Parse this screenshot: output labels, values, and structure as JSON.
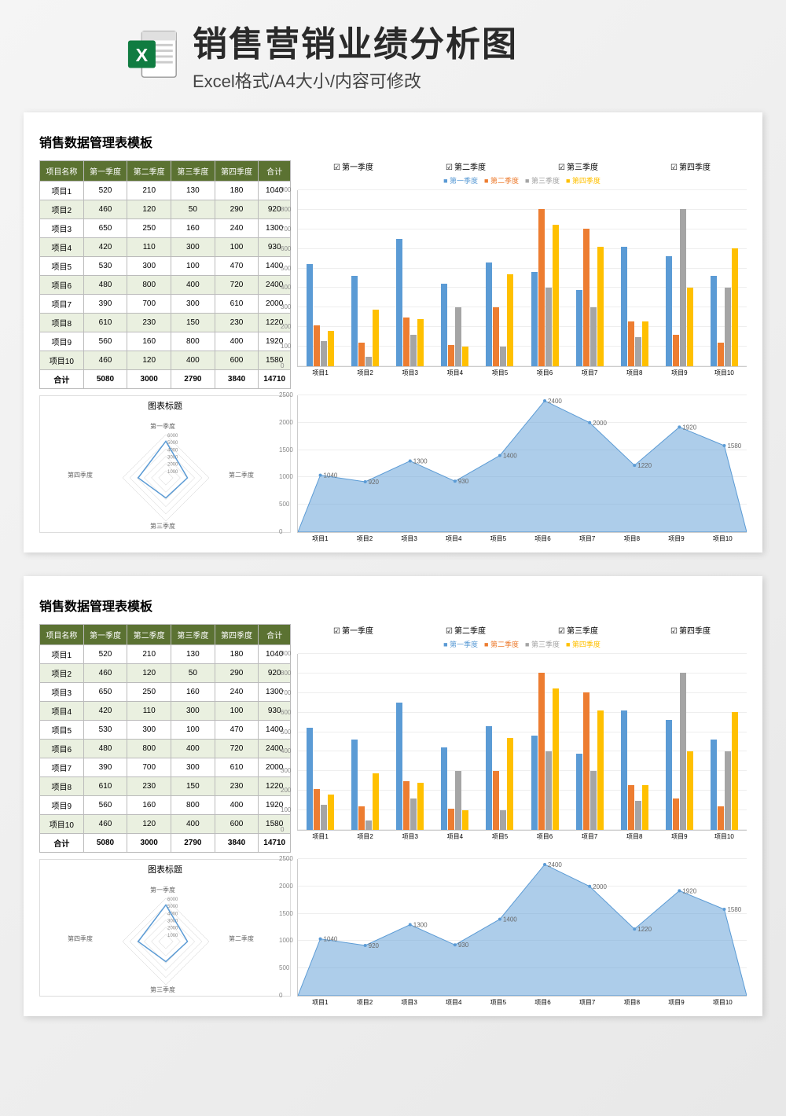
{
  "header": {
    "main_title": "销售营销业绩分析图",
    "sub_title": "Excel格式/A4大小/内容可修改"
  },
  "page": {
    "title": "销售数据管理表模板",
    "table": {
      "columns": [
        "项目名称",
        "第一季度",
        "第二季度",
        "第三季度",
        "第四季度",
        "合计"
      ],
      "rows": [
        [
          "项目1",
          520,
          210,
          130,
          180,
          1040
        ],
        [
          "项目2",
          460,
          120,
          50,
          290,
          920
        ],
        [
          "项目3",
          650,
          250,
          160,
          240,
          1300
        ],
        [
          "项目4",
          420,
          110,
          300,
          100,
          930
        ],
        [
          "项目5",
          530,
          300,
          100,
          470,
          1400
        ],
        [
          "项目6",
          480,
          800,
          400,
          720,
          2400
        ],
        [
          "项目7",
          390,
          700,
          300,
          610,
          2000
        ],
        [
          "项目8",
          610,
          230,
          150,
          230,
          1220
        ],
        [
          "项目9",
          560,
          160,
          800,
          400,
          1920
        ],
        [
          "项目10",
          460,
          120,
          400,
          600,
          1580
        ]
      ],
      "total_row": [
        "合计",
        5080,
        3000,
        2790,
        3840,
        14710
      ],
      "header_bg": "#5b7232",
      "header_color": "#ffffff",
      "alt_row_bg": "#eaf0e0"
    },
    "bar_chart": {
      "type": "bar",
      "checkboxes": [
        "第一季度",
        "第二季度",
        "第三季度",
        "第四季度"
      ],
      "legend": [
        "第一季度",
        "第二季度",
        "第三季度",
        "第四季度"
      ],
      "legend_colors": [
        "#5b9bd5",
        "#ed7d31",
        "#a5a5a5",
        "#ffc000"
      ],
      "categories": [
        "项目1",
        "项目2",
        "项目3",
        "项目4",
        "项目5",
        "项目6",
        "项目7",
        "项目8",
        "项目9",
        "项目10"
      ],
      "series": [
        [
          520,
          460,
          650,
          420,
          530,
          480,
          390,
          610,
          560,
          460
        ],
        [
          210,
          120,
          250,
          110,
          300,
          800,
          700,
          230,
          160,
          120
        ],
        [
          130,
          50,
          160,
          300,
          100,
          400,
          300,
          150,
          800,
          400
        ],
        [
          180,
          290,
          240,
          100,
          470,
          720,
          610,
          230,
          400,
          600
        ]
      ],
      "colors": [
        "#5b9bd5",
        "#ed7d31",
        "#a5a5a5",
        "#ffc000"
      ],
      "ylim": [
        0,
        900
      ],
      "ytick_step": 100,
      "grid_color": "#eeeeee"
    },
    "radar_chart": {
      "type": "radar",
      "title": "图表标题",
      "axes": [
        "第一季度",
        "第二季度",
        "第三季度",
        "第四季度"
      ],
      "rings": [
        1000,
        2000,
        3000,
        4000,
        5000,
        6000
      ],
      "values": [
        5080,
        3000,
        2790,
        3840
      ],
      "line_color": "#5b9bd5",
      "grid_color": "#cccccc"
    },
    "area_chart": {
      "type": "area",
      "categories": [
        "项目1",
        "项目2",
        "项目3",
        "项目4",
        "项目5",
        "项目6",
        "项目7",
        "项目8",
        "项目9",
        "项目10"
      ],
      "values": [
        1040,
        920,
        1300,
        930,
        1400,
        2400,
        2000,
        1220,
        1920,
        1580
      ],
      "data_labels": [
        1040,
        920,
        1300,
        930,
        1400,
        2400,
        2000,
        1220,
        1920,
        1580
      ],
      "fill_color": "#5b9bd5",
      "fill_opacity": 0.5,
      "ylim": [
        0,
        2500
      ],
      "ytick_step": 500,
      "grid_color": "#eeeeee"
    }
  }
}
